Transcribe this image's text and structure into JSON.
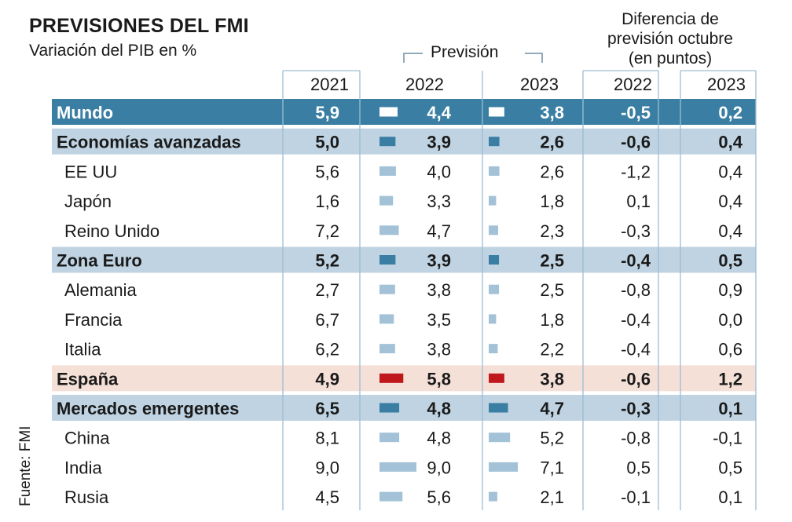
{
  "header": {
    "title": "PREVISIONES DEL FMI",
    "subtitle": "Variación del PIB en %",
    "prevision": "Previsión",
    "diferencia": "Diferencia de previsión octubre (en puntos)",
    "diferencia_lines": [
      "Diferencia de",
      "previsión octubre",
      "(en puntos)"
    ],
    "source": "Fuente: FMI"
  },
  "colors": {
    "mundo_bg": "#3a7fa3",
    "group_bg": "#bfd3e2",
    "spain_bg": "#f5e0d8",
    "bar_light": "#a3c2d7",
    "bar_dark": "#3a7fa3",
    "bar_spain": "#c0171c",
    "bar_white": "#ffffff",
    "grid_line": "#9dbdd3"
  },
  "chart_data": {
    "type": "table",
    "columns": [
      "2021",
      "2022",
      "2023",
      "2022",
      "2023"
    ],
    "rows": [
      {
        "name": "Mundo",
        "style": "world",
        "v2021": "5,9",
        "v2022": "4,4",
        "v2023": "3,8",
        "d2022": "-0,5",
        "d2023": "0,2",
        "n2022": 4.4,
        "n2023": 3.8
      },
      {
        "name": "Economías avanzadas",
        "style": "group",
        "v2021": "5,0",
        "v2022": "3,9",
        "v2023": "2,6",
        "d2022": "-0,6",
        "d2023": "0,4",
        "n2022": 3.9,
        "n2023": 2.6
      },
      {
        "name": "EE UU",
        "style": "normal",
        "v2021": "5,6",
        "v2022": "4,0",
        "v2023": "2,6",
        "d2022": "-1,2",
        "d2023": "0,4",
        "n2022": 4.0,
        "n2023": 2.6
      },
      {
        "name": "Japón",
        "style": "normal",
        "v2021": "1,6",
        "v2022": "3,3",
        "v2023": "1,8",
        "d2022": "0,1",
        "d2023": "0,4",
        "n2022": 3.3,
        "n2023": 1.8
      },
      {
        "name": "Reino Unido",
        "style": "normal",
        "v2021": "7,2",
        "v2022": "4,7",
        "v2023": "2,3",
        "d2022": "-0,3",
        "d2023": "0,4",
        "n2022": 4.7,
        "n2023": 2.3
      },
      {
        "name": "Zona Euro",
        "style": "group",
        "v2021": "5,2",
        "v2022": "3,9",
        "v2023": "2,5",
        "d2022": "-0,4",
        "d2023": "0,5",
        "n2022": 3.9,
        "n2023": 2.5
      },
      {
        "name": "Alemania",
        "style": "normal",
        "v2021": "2,7",
        "v2022": "3,8",
        "v2023": "2,5",
        "d2022": "-0,8",
        "d2023": "0,9",
        "n2022": 3.8,
        "n2023": 2.5
      },
      {
        "name": "Francia",
        "style": "normal",
        "v2021": "6,7",
        "v2022": "3,5",
        "v2023": "1,8",
        "d2022": "-0,4",
        "d2023": "0,0",
        "n2022": 3.5,
        "n2023": 1.8
      },
      {
        "name": "Italia",
        "style": "normal",
        "v2021": "6,2",
        "v2022": "3,8",
        "v2023": "2,2",
        "d2022": "-0,4",
        "d2023": "0,6",
        "n2022": 3.8,
        "n2023": 2.2
      },
      {
        "name": "España",
        "style": "spain",
        "v2021": "4,9",
        "v2022": "5,8",
        "v2023": "3,8",
        "d2022": "-0,6",
        "d2023": "1,2",
        "n2022": 5.8,
        "n2023": 3.8
      },
      {
        "name": "Mercados emergentes",
        "style": "group",
        "v2021": "6,5",
        "v2022": "4,8",
        "v2023": "4,7",
        "d2022": "-0,3",
        "d2023": "0,1",
        "n2022": 4.8,
        "n2023": 4.7
      },
      {
        "name": "China",
        "style": "normal",
        "v2021": "8,1",
        "v2022": "4,8",
        "v2023": "5,2",
        "d2022": "-0,8",
        "d2023": "-0,1",
        "n2022": 4.8,
        "n2023": 5.2
      },
      {
        "name": "India",
        "style": "normal",
        "v2021": "9,0",
        "v2022": "9,0",
        "v2023": "7,1",
        "d2022": "0,5",
        "d2023": "0,5",
        "n2022": 9.0,
        "n2023": 7.1
      },
      {
        "name": "Rusia",
        "style": "normal",
        "v2021": "4,5",
        "v2022": "5,6",
        "v2023": "2,1",
        "d2022": "-0,1",
        "d2023": "0,1",
        "n2022": 5.6,
        "n2023": 2.1
      }
    ]
  }
}
